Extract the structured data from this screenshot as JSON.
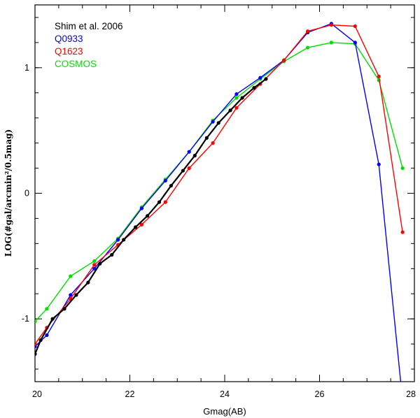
{
  "chart_data": {
    "type": "line",
    "xlabel": "Gmag(AB)",
    "ylabel": "LOG(#gal/arcmin²/0.5mag)",
    "xlim": [
      20,
      28
    ],
    "ylim": [
      -1.5,
      1.5
    ],
    "x_ticks": [
      20,
      22,
      24,
      26,
      28
    ],
    "y_ticks": [
      -1,
      0,
      1
    ],
    "legend_position": "top-left",
    "series": [
      {
        "name": "Shim et al. 2006",
        "color": "#000000",
        "points": [
          [
            20.0,
            -1.28
          ],
          [
            20.12,
            -1.17
          ],
          [
            20.37,
            -1.0
          ],
          [
            20.62,
            -0.92
          ],
          [
            20.87,
            -0.81
          ],
          [
            21.12,
            -0.71
          ],
          [
            21.37,
            -0.56
          ],
          [
            21.62,
            -0.49
          ],
          [
            21.87,
            -0.37
          ],
          [
            22.12,
            -0.27
          ],
          [
            22.37,
            -0.18
          ],
          [
            22.62,
            -0.07
          ],
          [
            22.87,
            0.06
          ],
          [
            23.12,
            0.18
          ],
          [
            23.37,
            0.3
          ],
          [
            23.62,
            0.44
          ],
          [
            23.87,
            0.56
          ],
          [
            24.12,
            0.66
          ],
          [
            24.37,
            0.76
          ],
          [
            24.62,
            0.84
          ],
          [
            24.87,
            0.91
          ]
        ]
      },
      {
        "name": "Q0933",
        "color": "#0000ff",
        "points": [
          [
            20.0,
            -1.22
          ],
          [
            20.25,
            -1.13
          ],
          [
            20.75,
            -0.81
          ],
          [
            21.25,
            -0.6
          ],
          [
            21.75,
            -0.37
          ],
          [
            22.25,
            -0.12
          ],
          [
            22.75,
            0.1
          ],
          [
            23.25,
            0.33
          ],
          [
            23.75,
            0.57
          ],
          [
            24.25,
            0.79
          ],
          [
            24.75,
            0.92
          ],
          [
            25.25,
            1.06
          ],
          [
            25.75,
            1.28
          ],
          [
            26.25,
            1.35
          ],
          [
            26.75,
            1.2
          ],
          [
            27.25,
            0.23
          ],
          [
            27.75,
            -1.65
          ]
        ]
      },
      {
        "name": "Q1623",
        "color": "#ff0000",
        "points": [
          [
            20.0,
            -1.2
          ],
          [
            20.25,
            -1.07
          ],
          [
            20.75,
            -0.84
          ],
          [
            21.25,
            -0.57
          ],
          [
            21.75,
            -0.41
          ],
          [
            22.25,
            -0.25
          ],
          [
            22.75,
            -0.07
          ],
          [
            23.25,
            0.2
          ],
          [
            23.75,
            0.4
          ],
          [
            24.25,
            0.68
          ],
          [
            24.75,
            0.87
          ],
          [
            25.25,
            1.06
          ],
          [
            25.75,
            1.29
          ],
          [
            26.25,
            1.34
          ],
          [
            26.75,
            1.33
          ],
          [
            27.25,
            0.93
          ],
          [
            27.75,
            -0.31
          ]
        ]
      },
      {
        "name": "COSMOS",
        "color": "#00dd00",
        "points": [
          [
            20.0,
            -1.02
          ],
          [
            20.25,
            -0.92
          ],
          [
            20.75,
            -0.66
          ],
          [
            21.25,
            -0.54
          ],
          [
            21.75,
            -0.36
          ],
          [
            22.25,
            -0.11
          ],
          [
            22.75,
            0.11
          ],
          [
            23.25,
            0.33
          ],
          [
            23.75,
            0.58
          ],
          [
            24.25,
            0.76
          ],
          [
            24.75,
            0.91
          ],
          [
            25.25,
            1.05
          ],
          [
            25.75,
            1.16
          ],
          [
            26.25,
            1.2
          ],
          [
            26.75,
            1.19
          ],
          [
            27.25,
            0.9
          ],
          [
            27.75,
            0.2
          ]
        ]
      }
    ]
  }
}
